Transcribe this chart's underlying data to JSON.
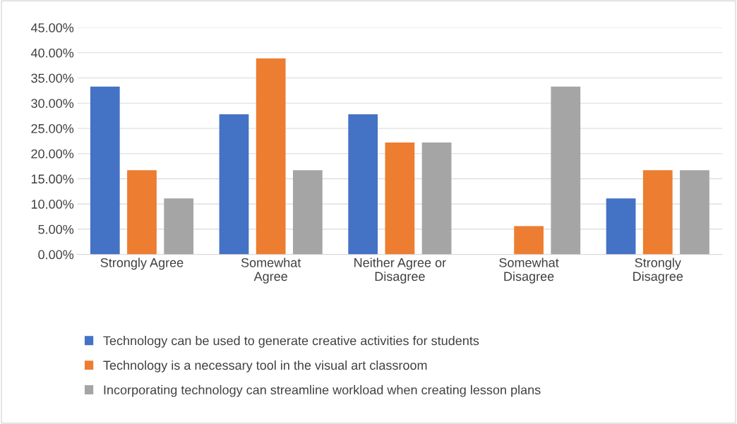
{
  "chart_data": {
    "type": "bar",
    "categories": [
      "Strongly Agree",
      "Somewhat\nAgree",
      "Neither Agree or\nDisagree",
      "Somewhat\nDisagree",
      "Strongly\nDisagree"
    ],
    "series": [
      {
        "name": "Technology can be used to generate creative activities for students",
        "color": "#4472c4",
        "values": [
          33.3,
          27.8,
          27.8,
          0,
          11.1
        ]
      },
      {
        "name": "Technology is a necessary tool in the visual art classroom",
        "color": "#ed7d31",
        "values": [
          16.7,
          38.9,
          22.2,
          5.6,
          16.7
        ]
      },
      {
        "name": "Incorporating technology can streamline workload when creating lesson plans",
        "color": "#a5a5a5",
        "values": [
          11.1,
          16.7,
          22.2,
          33.3,
          16.7
        ]
      }
    ],
    "ylim": [
      0,
      45
    ],
    "yticks": [
      {
        "value": 0,
        "label": "0.00%"
      },
      {
        "value": 5,
        "label": "5.00%"
      },
      {
        "value": 10,
        "label": "10.00%"
      },
      {
        "value": 15,
        "label": "15.00%"
      },
      {
        "value": 20,
        "label": "20.00%"
      },
      {
        "value": 25,
        "label": "25.00%"
      },
      {
        "value": 30,
        "label": "30.00%"
      },
      {
        "value": 35,
        "label": "35.00%"
      },
      {
        "value": 40,
        "label": "40.00%"
      },
      {
        "value": 45,
        "label": "45.00%"
      }
    ],
    "grid": "y",
    "legend": "bottom"
  }
}
